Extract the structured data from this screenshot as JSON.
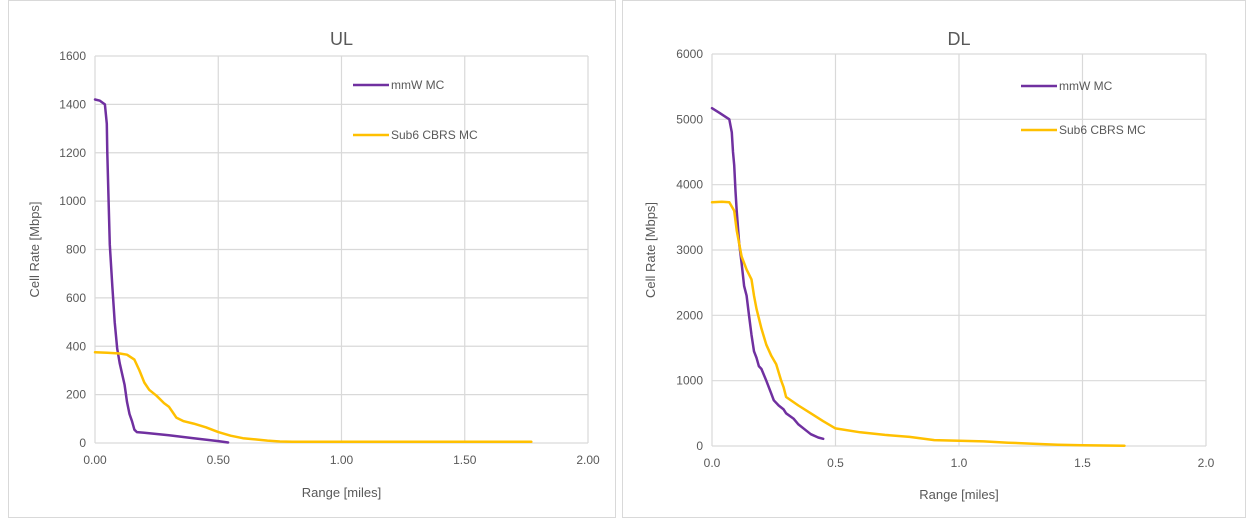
{
  "chart_data": [
    {
      "type": "line",
      "title": "UL",
      "xlabel": "Range [miles]",
      "ylabel": "Cell Rate [Mbps]",
      "xlim": [
        0,
        2
      ],
      "ylim": [
        0,
        1600
      ],
      "x_ticks": [
        0,
        0.5,
        1,
        1.5,
        2
      ],
      "x_tick_labels": [
        "0.00",
        "0.50",
        "1.00",
        "1.50",
        "2.00"
      ],
      "y_ticks": [
        0,
        200,
        400,
        600,
        800,
        1000,
        1200,
        1400,
        1600
      ],
      "y_tick_labels": [
        "0",
        "200",
        "400",
        "600",
        "800",
        "1000",
        "1200",
        "1400",
        "1600"
      ],
      "grid": "major",
      "legend_position": "top-right",
      "series": [
        {
          "name": "mmW MC",
          "color": "#7030A0",
          "points": [
            [
              0,
              1420
            ],
            [
              0.02,
              1415
            ],
            [
              0.04,
              1400
            ],
            [
              0.048,
              1320
            ],
            [
              0.05,
              1200
            ],
            [
              0.055,
              1000
            ],
            [
              0.06,
              820
            ],
            [
              0.07,
              650
            ],
            [
              0.08,
              500
            ],
            [
              0.09,
              390
            ],
            [
              0.1,
              330
            ],
            [
              0.12,
              240
            ],
            [
              0.13,
              170
            ],
            [
              0.14,
              120
            ],
            [
              0.15,
              90
            ],
            [
              0.16,
              55
            ],
            [
              0.17,
              45
            ],
            [
              0.2,
              42
            ],
            [
              0.3,
              32
            ],
            [
              0.4,
              20
            ],
            [
              0.5,
              8
            ],
            [
              0.54,
              2
            ]
          ]
        },
        {
          "name": "Sub6 CBRS MC",
          "color": "#FFC000",
          "points": [
            [
              0,
              375
            ],
            [
              0.05,
              373
            ],
            [
              0.1,
              370
            ],
            [
              0.13,
              365
            ],
            [
              0.16,
              345
            ],
            [
              0.18,
              300
            ],
            [
              0.2,
              250
            ],
            [
              0.22,
              220
            ],
            [
              0.25,
              195
            ],
            [
              0.28,
              165
            ],
            [
              0.3,
              150
            ],
            [
              0.32,
              120
            ],
            [
              0.33,
              105
            ],
            [
              0.36,
              90
            ],
            [
              0.4,
              80
            ],
            [
              0.45,
              65
            ],
            [
              0.5,
              45
            ],
            [
              0.55,
              30
            ],
            [
              0.6,
              20
            ],
            [
              0.65,
              15
            ],
            [
              0.7,
              10
            ],
            [
              0.75,
              6
            ],
            [
              0.8,
              5
            ],
            [
              1.0,
              5
            ],
            [
              1.5,
              5
            ],
            [
              1.77,
              5
            ]
          ]
        }
      ]
    },
    {
      "type": "line",
      "title": "DL",
      "xlabel": "Range [miles]",
      "ylabel": "Cell Rate [Mbps]",
      "xlim": [
        0,
        2
      ],
      "ylim": [
        0,
        6000
      ],
      "x_ticks": [
        0,
        0.5,
        1,
        1.5,
        2
      ],
      "x_tick_labels": [
        "0.0",
        "0.5",
        "1.0",
        "1.5",
        "2.0"
      ],
      "y_ticks": [
        0,
        1000,
        2000,
        3000,
        4000,
        5000,
        6000
      ],
      "y_tick_labels": [
        "0",
        "1000",
        "2000",
        "3000",
        "4000",
        "5000",
        "6000"
      ],
      "grid": "major",
      "legend_position": "top-right",
      "series": [
        {
          "name": "mmW MC",
          "color": "#7030A0",
          "points": [
            [
              0,
              5170
            ],
            [
              0.03,
              5100
            ],
            [
              0.07,
              5000
            ],
            [
              0.08,
              4800
            ],
            [
              0.085,
              4500
            ],
            [
              0.09,
              4300
            ],
            [
              0.095,
              3900
            ],
            [
              0.1,
              3600
            ],
            [
              0.11,
              3100
            ],
            [
              0.12,
              2800
            ],
            [
              0.13,
              2450
            ],
            [
              0.14,
              2300
            ],
            [
              0.15,
              2000
            ],
            [
              0.16,
              1700
            ],
            [
              0.17,
              1450
            ],
            [
              0.18,
              1350
            ],
            [
              0.19,
              1220
            ],
            [
              0.2,
              1180
            ],
            [
              0.22,
              1000
            ],
            [
              0.24,
              800
            ],
            [
              0.25,
              700
            ],
            [
              0.27,
              620
            ],
            [
              0.29,
              560
            ],
            [
              0.3,
              500
            ],
            [
              0.33,
              420
            ],
            [
              0.35,
              330
            ],
            [
              0.38,
              240
            ],
            [
              0.4,
              180
            ],
            [
              0.43,
              130
            ],
            [
              0.45,
              110
            ]
          ]
        },
        {
          "name": "Sub6 CBRS MC",
          "color": "#FFC000",
          "points": [
            [
              0,
              3730
            ],
            [
              0.04,
              3740
            ],
            [
              0.07,
              3730
            ],
            [
              0.09,
              3600
            ],
            [
              0.1,
              3300
            ],
            [
              0.12,
              2900
            ],
            [
              0.14,
              2700
            ],
            [
              0.16,
              2550
            ],
            [
              0.17,
              2300
            ],
            [
              0.18,
              2100
            ],
            [
              0.2,
              1800
            ],
            [
              0.22,
              1550
            ],
            [
              0.24,
              1380
            ],
            [
              0.26,
              1250
            ],
            [
              0.28,
              1000
            ],
            [
              0.29,
              900
            ],
            [
              0.3,
              750
            ],
            [
              0.35,
              620
            ],
            [
              0.4,
              500
            ],
            [
              0.45,
              380
            ],
            [
              0.5,
              270
            ],
            [
              0.6,
              210
            ],
            [
              0.7,
              170
            ],
            [
              0.8,
              140
            ],
            [
              0.9,
              90
            ],
            [
              1.0,
              80
            ],
            [
              1.1,
              70
            ],
            [
              1.2,
              50
            ],
            [
              1.3,
              35
            ],
            [
              1.4,
              20
            ],
            [
              1.5,
              10
            ],
            [
              1.67,
              5
            ]
          ]
        }
      ]
    }
  ]
}
